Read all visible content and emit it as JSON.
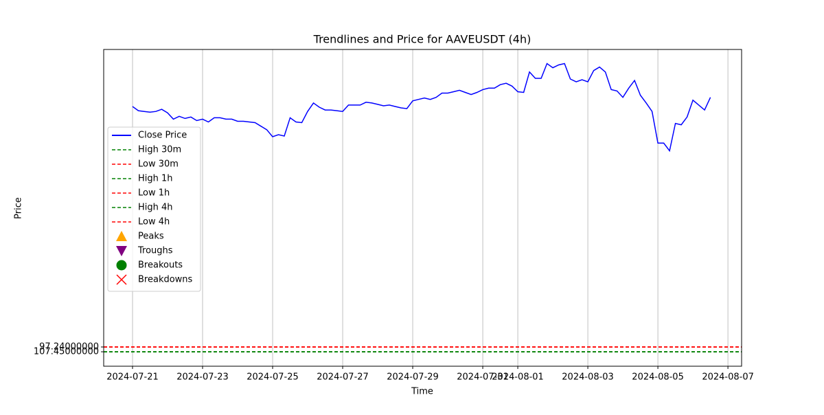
{
  "chart_data": {
    "type": "line",
    "title": "Trendlines and Price for AAVEUSDT (4h)",
    "xlabel": "Time",
    "ylabel": "Price",
    "x": [
      "2024-07-21T00:00",
      "2024-07-21T04:00",
      "2024-07-21T08:00",
      "2024-07-21T12:00",
      "2024-07-21T16:00",
      "2024-07-21T20:00",
      "2024-07-22T00:00",
      "2024-07-22T04:00",
      "2024-07-22T08:00",
      "2024-07-22T12:00",
      "2024-07-22T16:00",
      "2024-07-22T20:00",
      "2024-07-23T00:00",
      "2024-07-23T04:00",
      "2024-07-23T08:00",
      "2024-07-23T12:00",
      "2024-07-23T16:00",
      "2024-07-23T20:00",
      "2024-07-24T00:00",
      "2024-07-24T04:00",
      "2024-07-24T08:00",
      "2024-07-24T12:00",
      "2024-07-24T16:00",
      "2024-07-24T20:00",
      "2024-07-25T00:00",
      "2024-07-25T04:00",
      "2024-07-25T08:00",
      "2024-07-25T12:00",
      "2024-07-25T16:00",
      "2024-07-25T20:00",
      "2024-07-26T00:00",
      "2024-07-26T04:00",
      "2024-07-26T08:00",
      "2024-07-26T12:00",
      "2024-07-26T16:00",
      "2024-07-26T20:00",
      "2024-07-27T00:00",
      "2024-07-27T04:00",
      "2024-07-27T08:00",
      "2024-07-27T12:00",
      "2024-07-27T16:00",
      "2024-07-27T20:00",
      "2024-07-28T00:00",
      "2024-07-28T04:00",
      "2024-07-28T08:00",
      "2024-07-28T12:00",
      "2024-07-28T16:00",
      "2024-07-28T20:00",
      "2024-07-29T00:00",
      "2024-07-29T04:00",
      "2024-07-29T08:00",
      "2024-07-29T12:00",
      "2024-07-29T16:00",
      "2024-07-29T20:00",
      "2024-07-30T00:00",
      "2024-07-30T04:00",
      "2024-07-30T08:00",
      "2024-07-30T12:00",
      "2024-07-30T16:00",
      "2024-07-30T20:00",
      "2024-07-31T00:00",
      "2024-07-31T04:00",
      "2024-07-31T08:00",
      "2024-07-31T12:00",
      "2024-07-31T16:00",
      "2024-07-31T20:00",
      "2024-08-01T00:00",
      "2024-08-01T04:00",
      "2024-08-01T08:00",
      "2024-08-01T12:00",
      "2024-08-01T16:00",
      "2024-08-01T20:00",
      "2024-08-02T00:00",
      "2024-08-02T04:00",
      "2024-08-02T08:00",
      "2024-08-02T12:00",
      "2024-08-02T16:00",
      "2024-08-02T20:00",
      "2024-08-03T00:00",
      "2024-08-03T04:00",
      "2024-08-03T08:00",
      "2024-08-03T12:00",
      "2024-08-03T16:00",
      "2024-08-03T20:00",
      "2024-08-04T00:00",
      "2024-08-04T04:00",
      "2024-08-04T08:00",
      "2024-08-04T12:00",
      "2024-08-04T16:00",
      "2024-08-04T20:00",
      "2024-08-05T00:00",
      "2024-08-05T04:00",
      "2024-08-05T08:00",
      "2024-08-05T12:00",
      "2024-08-05T16:00",
      "2024-08-05T20:00",
      "2024-08-06T00:00",
      "2024-08-06T04:00",
      "2024-08-06T08:00",
      "2024-08-06T12:00"
    ],
    "series": [
      {
        "name": "Close Price",
        "color": "#0000ff",
        "axis": "y2",
        "values": [
          116.9,
          116.3,
          116.2,
          116.1,
          116.2,
          116.5,
          116.0,
          115.1,
          115.5,
          115.2,
          115.4,
          114.9,
          115.1,
          114.7,
          115.3,
          115.3,
          115.1,
          115.1,
          114.8,
          114.8,
          114.7,
          114.6,
          114.1,
          113.6,
          112.6,
          112.9,
          112.7,
          115.3,
          114.7,
          114.6,
          116.2,
          117.4,
          116.8,
          116.4,
          116.4,
          116.3,
          116.2,
          117.1,
          117.1,
          117.1,
          117.5,
          117.4,
          117.2,
          117.0,
          117.1,
          116.9,
          116.7,
          116.6,
          117.7,
          117.9,
          118.1,
          117.9,
          118.2,
          118.8,
          118.8,
          119.0,
          119.2,
          118.9,
          118.6,
          118.9,
          119.3,
          119.5,
          119.5,
          120.0,
          120.2,
          119.8,
          119.0,
          118.9,
          121.8,
          120.9,
          120.9,
          123.0,
          122.4,
          122.8,
          123.0,
          120.8,
          120.4,
          120.7,
          120.4,
          122.0,
          122.5,
          121.8,
          119.3,
          119.1,
          118.2,
          119.5,
          120.6,
          118.5,
          117.4,
          116.2,
          111.7,
          111.7,
          110.6,
          114.5,
          114.3,
          115.4,
          117.8,
          117.1,
          116.4,
          118.2
        ]
      }
    ],
    "hlines": [
      {
        "name": "High 30m",
        "color": "green",
        "value": 107.45
      },
      {
        "name": "Low 30m",
        "color": "red",
        "value": 97.24
      },
      {
        "name": "High 1h",
        "color": "green",
        "value": 107.45
      },
      {
        "name": "Low 1h",
        "color": "red",
        "value": 97.24
      },
      {
        "name": "High 4h",
        "color": "green",
        "value": 107.45
      },
      {
        "name": "Low 4h",
        "color": "red",
        "value": 97.24
      }
    ],
    "legend_markers": [
      {
        "name": "Peaks",
        "color": "orange",
        "marker": "triangle-up"
      },
      {
        "name": "Troughs",
        "color": "purple",
        "marker": "triangle-down"
      },
      {
        "name": "Breakouts",
        "color": "green",
        "marker": "circle"
      },
      {
        "name": "Breakdowns",
        "color": "red",
        "marker": "x"
      }
    ],
    "xlim": [
      "2024-07-20T04:14",
      "2024-08-07T09:22"
    ],
    "xticks": [
      "2024-07-21",
      "2024-07-23",
      "2024-07-25",
      "2024-07-27",
      "2024-07-29",
      "2024-07-31",
      "2024-08-01",
      "2024-08-03",
      "2024-08-05",
      "2024-08-07"
    ],
    "ylim": [
      138.08,
      -534.3
    ],
    "yticks": [
      {
        "value": 97.24,
        "label": "97.24000000"
      },
      {
        "value": 107.45,
        "label": "107.45000000"
      }
    ],
    "y2lim": [
      80,
      125
    ],
    "grid": "x",
    "legend": "center left"
  }
}
